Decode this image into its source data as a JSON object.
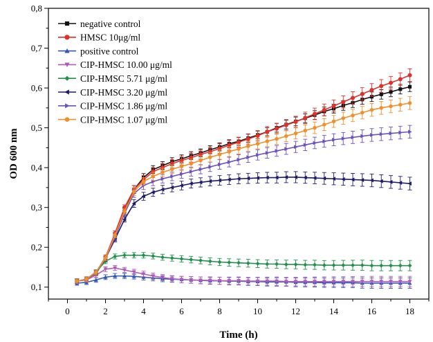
{
  "chart_data": {
    "type": "line",
    "title": "",
    "xlabel": "Time (h)",
    "ylabel": "OD 600 nm",
    "xlim": [
      -1,
      19
    ],
    "ylim": [
      0.07,
      0.8
    ],
    "x_ticks": [
      0,
      2,
      4,
      6,
      8,
      10,
      12,
      14,
      16,
      18
    ],
    "x_tick_labels": [
      "0",
      "2",
      "4",
      "6",
      "8",
      "10",
      "12",
      "14",
      "16",
      "18"
    ],
    "y_ticks": [
      0.1,
      0.2,
      0.3,
      0.4,
      0.5,
      0.6,
      0.7,
      0.8
    ],
    "y_tick_labels": [
      "0,1",
      "0,2",
      "0,3",
      "0,4",
      "0,5",
      "0,6",
      "0,7",
      "0,8"
    ],
    "legend_position": "top-left",
    "grid": false,
    "error_bars": true,
    "x": [
      0.5,
      1,
      1.5,
      2,
      2.5,
      3,
      3.5,
      4,
      4.5,
      5,
      5.5,
      6,
      6.5,
      7,
      7.5,
      8,
      8.5,
      9,
      9.5,
      10,
      10.5,
      11,
      11.5,
      12,
      12.5,
      13,
      13.5,
      14,
      14.5,
      15,
      15.5,
      16,
      16.5,
      17,
      17.5,
      18
    ],
    "series": [
      {
        "name": "negative control",
        "color": "#111111",
        "marker": "square",
        "values": [
          0.115,
          0.12,
          0.135,
          0.17,
          0.23,
          0.29,
          0.345,
          0.375,
          0.395,
          0.405,
          0.415,
          0.422,
          0.43,
          0.437,
          0.445,
          0.452,
          0.46,
          0.466,
          0.474,
          0.482,
          0.49,
          0.5,
          0.508,
          0.516,
          0.524,
          0.532,
          0.541,
          0.548,
          0.556,
          0.563,
          0.571,
          0.578,
          0.584,
          0.59,
          0.597,
          0.603
        ],
        "errors": [
          0.006,
          0.006,
          0.006,
          0.007,
          0.008,
          0.009,
          0.01,
          0.01,
          0.01,
          0.01,
          0.01,
          0.01,
          0.01,
          0.01,
          0.01,
          0.01,
          0.01,
          0.01,
          0.01,
          0.01,
          0.01,
          0.011,
          0.011,
          0.011,
          0.011,
          0.011,
          0.011,
          0.011,
          0.012,
          0.012,
          0.012,
          0.012,
          0.012,
          0.012,
          0.012,
          0.012
        ]
      },
      {
        "name": "HMSC 10μg/ml",
        "color": "#e0302a",
        "marker": "circle",
        "values": [
          0.115,
          0.12,
          0.137,
          0.175,
          0.235,
          0.3,
          0.345,
          0.37,
          0.39,
          0.4,
          0.41,
          0.418,
          0.425,
          0.433,
          0.44,
          0.448,
          0.456,
          0.464,
          0.472,
          0.48,
          0.49,
          0.498,
          0.507,
          0.515,
          0.525,
          0.535,
          0.545,
          0.555,
          0.565,
          0.575,
          0.585,
          0.595,
          0.605,
          0.613,
          0.622,
          0.632
        ]
      },
      {
        "name": "positive control",
        "color": "#2f57b4",
        "marker": "triangle-up",
        "values": [
          0.11,
          0.112,
          0.118,
          0.125,
          0.128,
          0.128,
          0.127,
          0.125,
          0.123,
          0.121,
          0.12,
          0.119,
          0.118,
          0.117,
          0.116,
          0.116,
          0.115,
          0.115,
          0.114,
          0.114,
          0.113,
          0.113,
          0.113,
          0.112,
          0.112,
          0.112,
          0.111,
          0.111,
          0.111,
          0.111,
          0.11,
          0.11,
          0.11,
          0.11,
          0.11,
          0.11
        ]
      },
      {
        "name": "CIP-HMSC 10.00 μg/ml",
        "color": "#b05ab8",
        "marker": "triangle-down",
        "values": [
          0.115,
          0.118,
          0.13,
          0.145,
          0.148,
          0.143,
          0.138,
          0.133,
          0.128,
          0.124,
          0.121,
          0.119,
          0.118,
          0.117,
          0.117,
          0.116,
          0.116,
          0.116,
          0.115,
          0.115,
          0.115,
          0.115,
          0.114,
          0.114,
          0.114,
          0.114,
          0.114,
          0.114,
          0.114,
          0.114,
          0.114,
          0.114,
          0.114,
          0.114,
          0.114,
          0.114
        ]
      },
      {
        "name": "CIP-HMSC  5.71 μg/ml",
        "color": "#22904a",
        "marker": "diamond",
        "values": [
          0.115,
          0.12,
          0.138,
          0.165,
          0.177,
          0.18,
          0.18,
          0.18,
          0.178,
          0.175,
          0.173,
          0.171,
          0.169,
          0.167,
          0.165,
          0.163,
          0.162,
          0.161,
          0.16,
          0.159,
          0.158,
          0.158,
          0.157,
          0.157,
          0.156,
          0.156,
          0.155,
          0.155,
          0.155,
          0.155,
          0.155,
          0.154,
          0.154,
          0.154,
          0.154,
          0.154
        ]
      },
      {
        "name": "CIP-HMSC  3.20 μg/ml",
        "color": "#1c1a6b",
        "marker": "triangle-left",
        "values": [
          0.115,
          0.12,
          0.137,
          0.172,
          0.22,
          0.27,
          0.31,
          0.328,
          0.338,
          0.345,
          0.35,
          0.355,
          0.36,
          0.363,
          0.366,
          0.368,
          0.37,
          0.372,
          0.373,
          0.374,
          0.375,
          0.375,
          0.376,
          0.376,
          0.375,
          0.374,
          0.373,
          0.372,
          0.371,
          0.37,
          0.369,
          0.368,
          0.366,
          0.364,
          0.362,
          0.36
        ]
      },
      {
        "name": "CIP-HMSC  1.86 μg/ml",
        "color": "#6a4fc0",
        "marker": "triangle-right",
        "values": [
          0.115,
          0.12,
          0.137,
          0.172,
          0.225,
          0.285,
          0.335,
          0.355,
          0.365,
          0.372,
          0.378,
          0.384,
          0.39,
          0.396,
          0.402,
          0.408,
          0.414,
          0.42,
          0.426,
          0.432,
          0.437,
          0.442,
          0.447,
          0.452,
          0.457,
          0.462,
          0.466,
          0.47,
          0.473,
          0.476,
          0.479,
          0.482,
          0.484,
          0.486,
          0.488,
          0.49
        ]
      },
      {
        "name": "CIP-HMSC  1.07 μg/ml",
        "color": "#f0902a",
        "marker": "hexagon",
        "values": [
          0.115,
          0.12,
          0.137,
          0.173,
          0.23,
          0.29,
          0.34,
          0.365,
          0.378,
          0.388,
          0.396,
          0.403,
          0.41,
          0.418,
          0.426,
          0.433,
          0.44,
          0.447,
          0.454,
          0.46,
          0.466,
          0.472,
          0.479,
          0.486,
          0.493,
          0.5,
          0.508,
          0.516,
          0.524,
          0.531,
          0.538,
          0.545,
          0.55,
          0.554,
          0.558,
          0.562
        ]
      }
    ]
  }
}
